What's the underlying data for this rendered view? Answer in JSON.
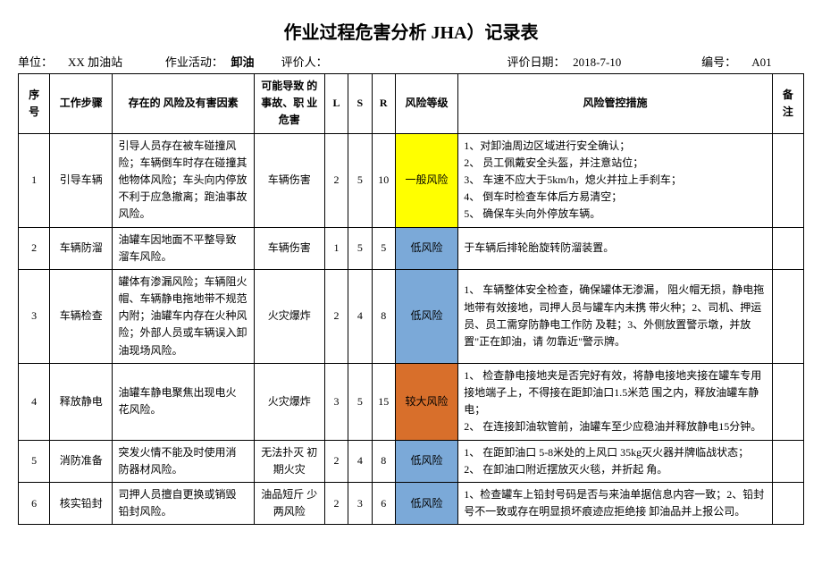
{
  "title": "作业过程危害分析 JHA）记录表",
  "meta": {
    "unit_label": "单位：",
    "unit_value": "XX 加油站",
    "activity_label": "作业活动：",
    "activity_value": "卸油",
    "evaluator_label": "评价人：",
    "evaluator_value": "",
    "date_label": "评价日期：",
    "date_value": "2018-7-10",
    "code_label": "编号：",
    "code_value": "A01"
  },
  "columns": {
    "seq": "序号",
    "step": "工作步骤",
    "risk": "存在的\n风险及有害因素",
    "hazard": "可能导致 的事故、职 业危害",
    "l": "L",
    "s": "S",
    "r": "R",
    "level": "风险等级",
    "measure": "风险管控措施",
    "remark": "备注"
  },
  "level_colors": {
    "general": "#ffff00",
    "low": "#7ba9d8",
    "high": "#d86f2b"
  },
  "rows": [
    {
      "seq": "1",
      "step": "引导车辆",
      "risk": "引导人员存在被车碰撞风险；车辆倒车时存在碰撞其他物体风险；车头向内停放不利于应急撤离；跑油事故风险。",
      "hazard": "车辆伤害",
      "l": "2",
      "s": "5",
      "r": "10",
      "level": "一般风险",
      "level_color": "#ffff00",
      "measure": "1、对卸油周边区域进行安全确认；\n2、 员工佩戴安全头盔，并注意站位；\n3、 车速不应大于5km/h，熄火并拉上手刹车；\n4、 倒车时检查车体后方易清空；\n5、 确保车头向外停放车辆。",
      "remark": ""
    },
    {
      "seq": "2",
      "step": "车辆防溜",
      "risk": "油罐车因地面不平整导致 溜车风险。",
      "hazard": "车辆伤害",
      "l": "1",
      "s": "5",
      "r": "5",
      "level": "低风险",
      "level_color": "#7ba9d8",
      "measure": "于车辆后排轮胎旋转防溜装置。",
      "remark": ""
    },
    {
      "seq": "3",
      "step": "车辆检查",
      "risk": "罐体有渗漏风险；车辆阻火帽、车辆静电拖地带不规范\n内附；油罐车内存在火种风险；外部人员或车辆误入卸油现场风险。",
      "hazard": "火灾爆炸",
      "l": "2",
      "s": "4",
      "r": "8",
      "level": "低风险",
      "level_color": "#7ba9d8",
      "measure": "1、 车辆整体安全检查，确保罐体无渗漏， 阻火帽无损，静电拖地带有效接地，司押人员与罐车内未携 带火种；2、司机、押运员、员工需穿防静电工作防 及鞋；3、外侧放置警示墩，并放置\"正在卸油，请 勿靠近\"警示牌。",
      "remark": ""
    },
    {
      "seq": "4",
      "step": "释放静电",
      "risk": "油罐车静电聚焦出现电火 花风险。",
      "hazard": "火灾爆炸",
      "l": "3",
      "s": "5",
      "r": "15",
      "level": "较大风险",
      "level_color": "#d86f2b",
      "measure": "1、 检查静电接地夹是否完好有效，将静电接地夹接在罐车专用接地端子上，不得接在距卸油口1.5米范 围之内，释放油罐车静电；\n2、 在连接卸油软管前，油罐车至少应稳油并释放静电15分钟。",
      "remark": ""
    },
    {
      "seq": "5",
      "step": "消防准备",
      "risk": "突发火情不能及时使用消 防器材风险。",
      "hazard": "无法扑灭 初期火灾",
      "l": "2",
      "s": "4",
      "r": "8",
      "level": "低风险",
      "level_color": "#7ba9d8",
      "measure": "1、 在距卸油口 5-8米处的上风口 35kg灭火器并牌临战状态；\n2、 在卸油口附近摆放灭火毯，并折起 角。",
      "remark": ""
    },
    {
      "seq": "6",
      "step": "核实铅封",
      "risk": "司押人员擅自更换或销毁 铅封风险。",
      "hazard": "油品短斤 少两风险",
      "l": "2",
      "s": "3",
      "r": "6",
      "level": "低风险",
      "level_color": "#7ba9d8",
      "measure": "1、检查罐车上铅封号码是否与来油单据信息内容一致；2、铅封号不一致或存在明显损坏痕迹应拒绝接 卸油品并上报公司。",
      "remark": ""
    }
  ]
}
